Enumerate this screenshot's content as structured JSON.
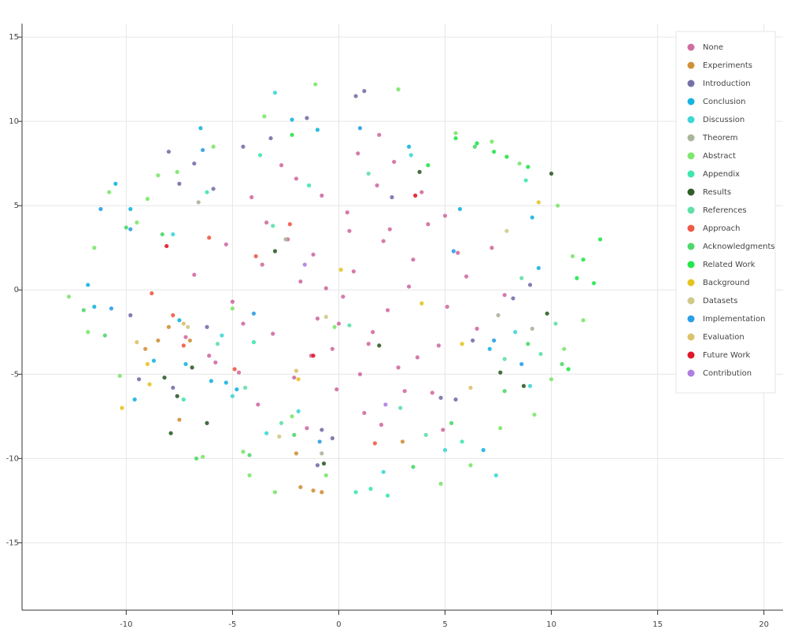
{
  "chart_data": {
    "type": "scatter",
    "xlim": [
      -14.9,
      20.9
    ],
    "ylim": [
      -19,
      15.8
    ],
    "xticks": [
      -10,
      -5,
      0,
      5,
      10,
      15,
      20
    ],
    "yticks": [
      -15,
      -10,
      -5,
      0,
      5,
      10,
      15
    ],
    "grid": true,
    "legend": "top_right",
    "series": [
      {
        "name": "None",
        "color": "#d06da0",
        "x": [
          0.5,
          -1.2,
          2.3,
          -3.4,
          1.8,
          -0.3,
          3.5,
          -2.1,
          4.2,
          -4.5,
          0.9,
          2.8,
          -1.8,
          5.1,
          -5.3,
          1.2,
          -0.8,
          3.1,
          -2.7,
          6.0,
          -6.1,
          0.2,
          2.1,
          -3.8,
          4.7,
          -1.5,
          1.6,
          -4.1,
          3.9,
          0.7,
          -2.4,
          5.6,
          -0.1,
          2.6,
          -5.0,
          7.2,
          -6.8,
          1.4,
          -1.0,
          4.4,
          -3.1,
          0.4,
          2.0,
          6.5,
          -4.7,
          3.3,
          -2.0,
          1.0,
          -0.6,
          5.0,
          7.8,
          -7.2,
          0.0,
          3.7,
          -3.6,
          2.4,
          -1.3,
          4.9,
          -5.8,
          1.9
        ],
        "values": [
          3.5,
          2.1,
          -1.2,
          4.0,
          6.2,
          -3.5,
          1.8,
          -5.2,
          3.9,
          -2.0,
          8.1,
          -4.6,
          0.5,
          -1.0,
          2.7,
          -7.3,
          5.6,
          -6.0,
          7.4,
          0.8,
          -3.9,
          -0.4,
          2.9,
          -6.8,
          -3.3,
          -8.2,
          -2.5,
          5.5,
          5.8,
          1.1,
          3.0,
          2.2,
          -5.9,
          7.6,
          -0.7,
          2.5,
          0.9,
          -3.2,
          -1.7,
          -6.1,
          -2.6,
          4.6,
          -8.0,
          -2.3,
          -4.9,
          0.2,
          6.6,
          -5.0,
          0.1,
          4.4,
          -0.3,
          -2.8,
          -2.0,
          -4.0,
          1.5,
          3.6,
          -3.9,
          -8.3,
          -4.3,
          9.2
        ]
      },
      {
        "name": "Experiments",
        "color": "#d0913a",
        "x": [
          -8.5,
          -8.0,
          -9.1,
          -7.5,
          -1.8,
          -1.2,
          -0.8,
          -2.0,
          3.0,
          -7.0
        ],
        "values": [
          -3.0,
          -2.2,
          -3.5,
          -7.7,
          -11.7,
          -11.9,
          -12.0,
          -9.7,
          -9.0,
          -3.0
        ]
      },
      {
        "name": "Introduction",
        "color": "#7571a8",
        "x": [
          -8.0,
          -7.5,
          -6.8,
          -5.9,
          -4.5,
          -3.2,
          -1.5,
          -0.8,
          0.8,
          1.2,
          -1.0,
          -0.3,
          5.5,
          6.3,
          9.0,
          8.2,
          -9.8,
          -9.4,
          -7.8,
          4.8,
          2.5,
          -6.2
        ],
        "values": [
          8.2,
          6.3,
          7.5,
          6.0,
          8.5,
          9.0,
          10.2,
          -8.3,
          11.5,
          11.8,
          -10.4,
          -8.8,
          -6.5,
          -3.0,
          0.3,
          -0.5,
          -1.5,
          -5.3,
          -5.8,
          -6.4,
          5.5,
          -2.2
        ]
      },
      {
        "name": "Conclusion",
        "color": "#18b4e0",
        "x": [
          -10.5,
          -11.8,
          -9.8,
          -8.7,
          -7.5,
          -6.5,
          -6.0,
          -4.8,
          -2.2,
          -1.0,
          3.3,
          6.8,
          9.1,
          9.4,
          -11.5,
          -9.6,
          -7.2,
          -5.3,
          7.1,
          5.7
        ],
        "values": [
          6.3,
          0.3,
          4.8,
          -4.2,
          -1.8,
          9.6,
          -5.4,
          -5.9,
          10.1,
          9.5,
          8.5,
          -9.5,
          4.3,
          1.3,
          -1.0,
          -6.5,
          -4.4,
          -5.5,
          -3.5,
          4.8
        ]
      },
      {
        "name": "Discussion",
        "color": "#3fd6d6",
        "x": [
          -7.8,
          -5.5,
          -3.0,
          -1.9,
          3.4,
          5.0,
          7.4,
          8.3,
          -5.0,
          2.1,
          -3.4,
          9.0
        ],
        "values": [
          3.3,
          -2.7,
          11.7,
          -7.2,
          8.0,
          -9.5,
          -11.0,
          -2.5,
          -6.3,
          -10.8,
          -8.5,
          -5.7
        ]
      },
      {
        "name": "Theorem",
        "color": "#a9b59a",
        "x": [
          -0.8,
          9.1,
          -6.6,
          7.5,
          -2.5
        ],
        "values": [
          -9.7,
          -2.3,
          5.2,
          -1.5,
          3.0
        ]
      },
      {
        "name": "Abstract",
        "color": "#7de66d",
        "x": [
          -12.7,
          -11.5,
          -10.8,
          -9.5,
          -8.5,
          -7.6,
          -6.4,
          -4.5,
          -3.0,
          -1.1,
          -0.6,
          2.8,
          4.8,
          5.5,
          7.2,
          8.5,
          10.3,
          11.0,
          11.5,
          10.6,
          10.0,
          9.2,
          7.6,
          6.2,
          -4.2,
          -3.5,
          -2.2,
          -5.9,
          -11.8,
          -10.3,
          -9.0,
          -0.2,
          -5.0
        ],
        "values": [
          -0.4,
          2.5,
          5.8,
          4.0,
          6.8,
          7.0,
          -9.9,
          -9.6,
          -12.0,
          12.2,
          -11.0,
          11.9,
          -11.5,
          9.3,
          8.8,
          7.5,
          5.0,
          2.0,
          -1.8,
          -3.5,
          -5.3,
          -7.4,
          -8.2,
          -10.4,
          -11.0,
          10.3,
          -7.5,
          8.5,
          -2.5,
          -5.1,
          5.4,
          -2.2,
          -1.1
        ]
      },
      {
        "name": "Appendix",
        "color": "#3fe6b0",
        "x": [
          -6.2,
          -3.7,
          -1.4,
          0.8,
          1.5,
          2.3,
          5.8,
          8.8,
          -7.3,
          -4.0
        ],
        "values": [
          5.8,
          8.0,
          6.2,
          -12.0,
          -11.8,
          -12.2,
          -9.0,
          6.5,
          -6.5,
          -3.1
        ]
      },
      {
        "name": "Results",
        "color": "#2f5e2a",
        "x": [
          -8.2,
          -7.6,
          -6.9,
          -7.9,
          -0.7,
          3.8,
          7.6,
          8.7,
          10.0,
          9.8,
          -3.0,
          -6.2,
          1.9
        ],
        "values": [
          -5.2,
          -6.3,
          -4.6,
          -8.5,
          -10.3,
          7.0,
          -4.9,
          -5.7,
          6.9,
          -1.4,
          2.3,
          -7.9,
          -3.3
        ]
      },
      {
        "name": "References",
        "color": "#60e0a8",
        "x": [
          -5.7,
          -4.4,
          -2.7,
          0.5,
          1.4,
          4.1,
          7.8,
          8.6,
          9.5,
          10.2,
          -3.1,
          2.9
        ],
        "values": [
          -3.2,
          -5.8,
          -7.9,
          -2.1,
          6.9,
          -8.6,
          -4.1,
          0.7,
          -3.8,
          -2.0,
          3.8,
          -7.0
        ]
      },
      {
        "name": "Approach",
        "color": "#ef5a45",
        "x": [
          -8.8,
          -7.3,
          -6.1,
          -4.9,
          -3.9,
          -7.8,
          -2.3,
          1.7
        ],
        "values": [
          -0.2,
          -3.3,
          3.1,
          -4.7,
          2.0,
          -1.5,
          3.9,
          -9.1
        ]
      },
      {
        "name": "Acknowledgments",
        "color": "#4ed86a",
        "x": [
          -11.0,
          -10.0,
          -8.3,
          -6.7,
          -4.2,
          -2.1,
          3.5,
          5.3,
          6.4,
          7.8,
          8.9,
          10.5,
          -12.0
        ],
        "values": [
          -2.7,
          3.7,
          3.3,
          -10.0,
          -9.8,
          -8.6,
          -10.5,
          -7.9,
          8.5,
          -6.0,
          -3.2,
          -4.4,
          -1.2
        ]
      },
      {
        "name": "Related Work",
        "color": "#22e64a",
        "x": [
          6.5,
          7.3,
          7.9,
          5.5,
          8.9,
          11.5,
          12.0,
          12.3,
          11.2,
          10.8,
          -2.2,
          4.2
        ],
        "values": [
          8.7,
          8.2,
          7.9,
          9.0,
          7.3,
          1.8,
          0.4,
          3.0,
          0.7,
          -4.7,
          9.2,
          7.4
        ]
      },
      {
        "name": "Background",
        "color": "#e5c41f",
        "x": [
          -10.2,
          -9.0,
          -8.9,
          -1.9,
          0.1,
          3.9,
          9.4,
          5.8
        ],
        "values": [
          -7.0,
          -4.4,
          -5.6,
          -5.3,
          1.2,
          -0.8,
          5.2,
          -3.2
        ]
      },
      {
        "name": "Datasets",
        "color": "#cfc98a",
        "x": [
          -7.1,
          -2.8,
          7.9,
          -0.6
        ],
        "values": [
          -2.2,
          -8.7,
          3.5,
          -1.6
        ]
      },
      {
        "name": "Implementation",
        "color": "#2a9ee8",
        "x": [
          -10.7,
          -9.8,
          -6.4,
          -4.0,
          -0.9,
          1.0,
          5.4,
          7.3,
          8.6,
          -11.2
        ],
        "values": [
          -1.1,
          3.6,
          8.3,
          -1.4,
          -9.0,
          9.6,
          2.3,
          -3.0,
          -4.4,
          4.8
        ]
      },
      {
        "name": "Evaluation",
        "color": "#dcc06a",
        "x": [
          -9.5,
          -7.3,
          -2.0,
          6.2
        ],
        "values": [
          -3.1,
          -2.0,
          -4.8,
          -5.8
        ]
      },
      {
        "name": "Future Work",
        "color": "#e0172a",
        "x": [
          3.6,
          -1.2,
          -8.1
        ],
        "values": [
          5.6,
          -3.9,
          2.6
        ]
      },
      {
        "name": "Contribution",
        "color": "#b07ee0",
        "x": [
          -1.6,
          2.2
        ],
        "values": [
          1.5,
          -6.8
        ]
      }
    ]
  }
}
